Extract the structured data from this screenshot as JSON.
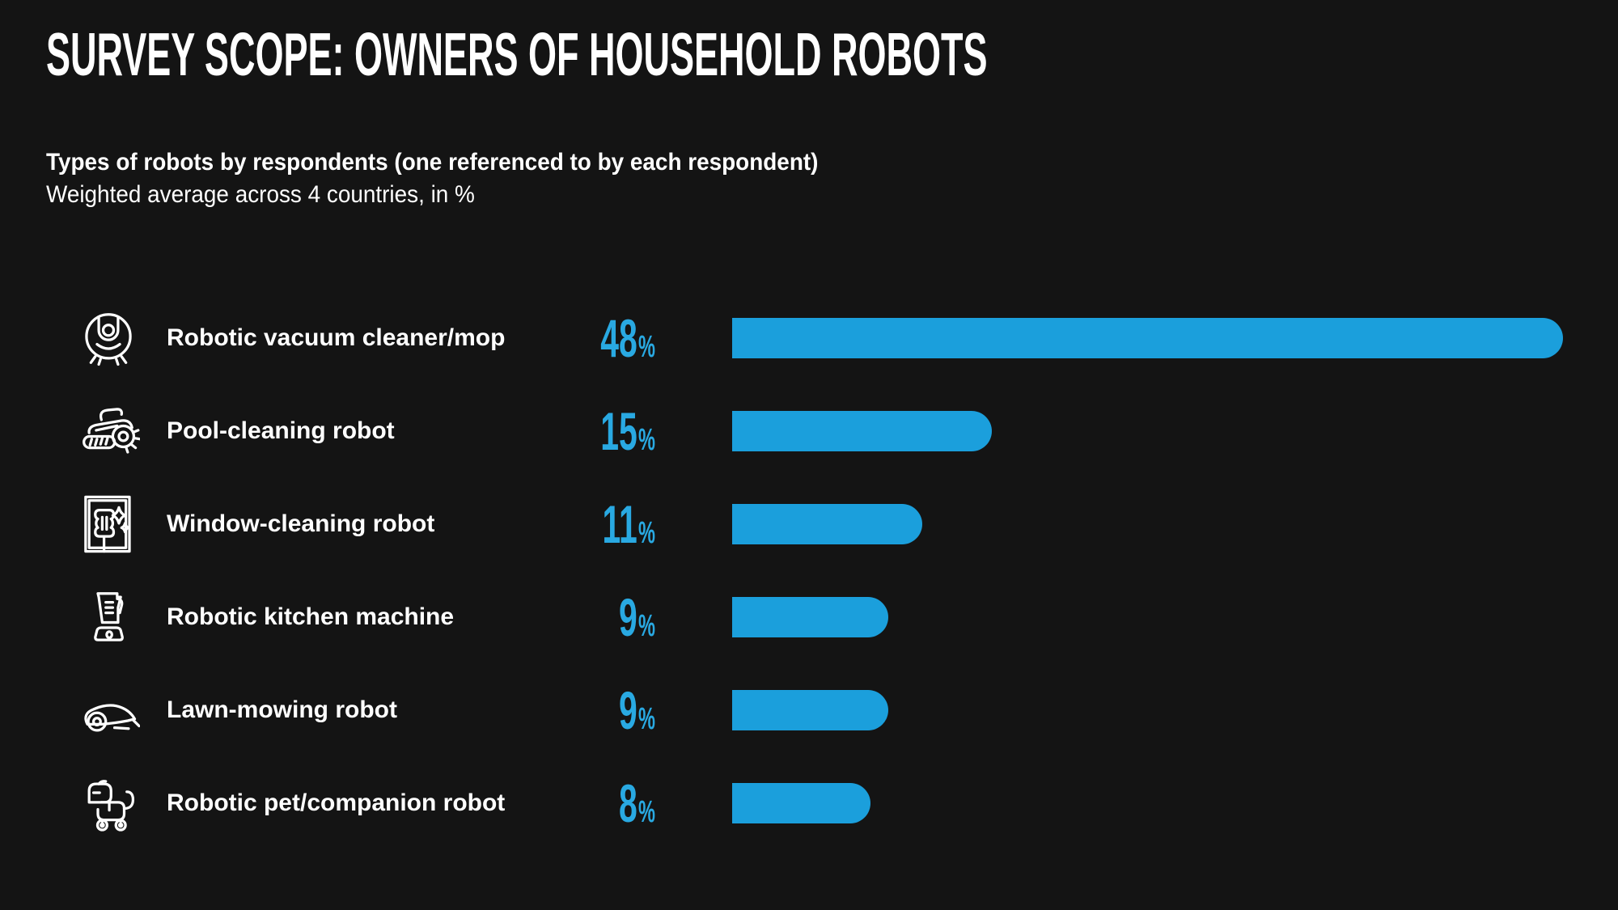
{
  "page": {
    "background": "#141414"
  },
  "title": "SURVEY SCOPE: OWNERS OF HOUSEHOLD ROBOTS",
  "subtitle": {
    "line1": "Types of robots by respondents (one referenced to by each respondent)",
    "line2": "Weighted average across 4 countries, in %"
  },
  "colors": {
    "background": "#141414",
    "text": "#FFFFFF",
    "bar_blue": "#1B9FDC",
    "number_blue": "#29A9E2"
  },
  "chart_data": {
    "type": "bar",
    "orientation": "horizontal",
    "title": "Types of robots by respondents (one referenced to by each respondent)",
    "subtitle": "Weighted average across 4 countries, in %",
    "unit": "%",
    "xlim": [
      0,
      48
    ],
    "grid": false,
    "legend": false,
    "bar_color": "#1B9FDC",
    "categories": [
      "Robotic vacuum cleaner/mop",
      "Pool-cleaning robot",
      "Window-cleaning robot",
      "Robotic kitchen machine",
      "Lawn-mowing robot",
      "Robotic pet/companion robot"
    ],
    "values": [
      48,
      15,
      11,
      9,
      9,
      8
    ],
    "value_labels": [
      "48%",
      "15%",
      "11%",
      "9%",
      "9%",
      "8%"
    ],
    "icons": [
      "robot-vacuum-icon",
      "pool-robot-icon",
      "window-robot-icon",
      "kitchen-machine-icon",
      "lawn-mower-icon",
      "robot-dog-icon"
    ]
  }
}
